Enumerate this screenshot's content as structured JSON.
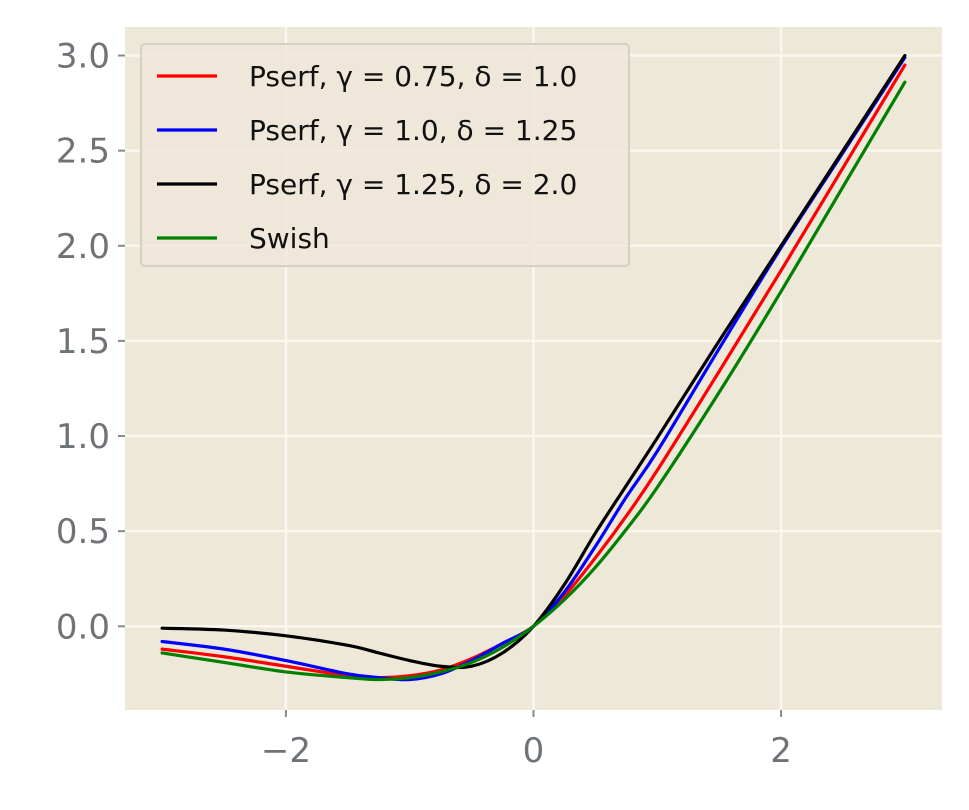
{
  "chart_data": {
    "type": "line",
    "title": "",
    "xlabel": "",
    "ylabel": "",
    "xlim": [
      -3.3,
      3.3
    ],
    "ylim": [
      -0.44,
      3.15
    ],
    "xticks": [
      {
        "value": -2,
        "label": "−2"
      },
      {
        "value": 0,
        "label": "0"
      },
      {
        "value": 2,
        "label": "2"
      }
    ],
    "yticks": [
      {
        "value": 0.0,
        "label": "0.0"
      },
      {
        "value": 0.5,
        "label": "0.5"
      },
      {
        "value": 1.0,
        "label": "1.0"
      },
      {
        "value": 1.5,
        "label": "1.5"
      },
      {
        "value": 2.0,
        "label": "2.0"
      },
      {
        "value": 2.5,
        "label": "2.5"
      },
      {
        "value": 3.0,
        "label": "3.0"
      }
    ],
    "grid": true,
    "legend_position": "top-left",
    "colors": {
      "background": "#eee8d9",
      "grid": "#faf7ef",
      "tick_text": "#6e7378"
    },
    "x": [
      -3.0,
      -2.5,
      -2.0,
      -1.5,
      -1.25,
      -1.0,
      -0.75,
      -0.5,
      -0.25,
      0.0,
      0.25,
      0.5,
      0.75,
      1.0,
      1.5,
      2.0,
      2.5,
      3.0
    ],
    "series": [
      {
        "name": "Pserf, γ = 0.75, δ = 1.0",
        "color": "#ff0000",
        "values": [
          -0.12,
          -0.16,
          -0.21,
          -0.26,
          -0.27,
          -0.26,
          -0.23,
          -0.17,
          -0.09,
          0.0,
          0.16,
          0.36,
          0.58,
          0.82,
          1.34,
          1.87,
          2.41,
          2.95
        ]
      },
      {
        "name": "Pserf, γ = 1.0, δ = 1.25",
        "color": "#0000ff",
        "values": [
          -0.08,
          -0.12,
          -0.18,
          -0.25,
          -0.27,
          -0.28,
          -0.25,
          -0.18,
          -0.09,
          0.0,
          0.18,
          0.42,
          0.68,
          0.92,
          1.46,
          1.99,
          2.49,
          2.99
        ]
      },
      {
        "name": "Pserf, γ = 1.25, δ = 2.0",
        "color": "#000000",
        "values": [
          -0.01,
          -0.02,
          -0.05,
          -0.1,
          -0.14,
          -0.18,
          -0.21,
          -0.21,
          -0.14,
          0.0,
          0.22,
          0.49,
          0.74,
          0.99,
          1.5,
          2.0,
          2.5,
          3.0
        ]
      },
      {
        "name": "Swish",
        "color": "#008000",
        "values": [
          -0.14,
          -0.19,
          -0.24,
          -0.27,
          -0.28,
          -0.27,
          -0.24,
          -0.19,
          -0.11,
          0.0,
          0.14,
          0.31,
          0.51,
          0.73,
          1.23,
          1.76,
          2.31,
          2.86
        ]
      }
    ]
  }
}
